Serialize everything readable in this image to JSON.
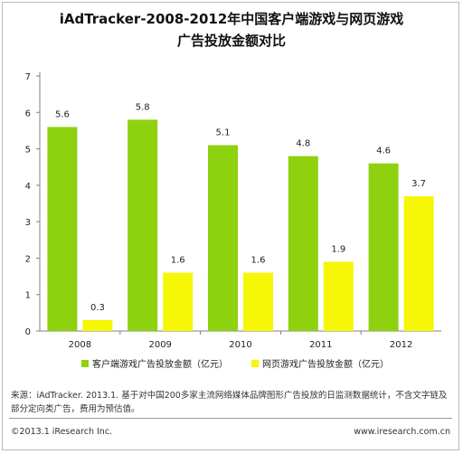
{
  "title_line1": "iAdTracker-2008-2012年中国客户端游戏与网页游戏",
  "title_line2": "广告投放金额对比",
  "source_note": "来源：iAdTracker. 2013.1. 基于对中国200多家主流网络媒体品牌图形广告投放的日监测数据统计，不含文字链及部分定向类广告，费用为预估值。",
  "copyright": "©2013.1 iResearch Inc.",
  "website": "www.iresearch.com.cn",
  "colors": {
    "client": "#8ed10f",
    "web": "#f6f607",
    "axis": "#808080"
  },
  "chart_data": {
    "type": "bar",
    "categories": [
      "2008",
      "2009",
      "2010",
      "2011",
      "2012"
    ],
    "series": [
      {
        "name": "客户端游戏广告投放金额（亿元）",
        "values": [
          5.6,
          5.8,
          5.1,
          4.8,
          4.6
        ]
      },
      {
        "name": "网页游戏广告投放金额（亿元）",
        "values": [
          0.3,
          1.6,
          1.6,
          1.9,
          3.7
        ]
      }
    ],
    "ylim": [
      0,
      7
    ],
    "yticks": [
      0,
      1,
      2,
      3,
      4,
      5,
      6,
      7
    ],
    "data_labels": true,
    "legend_position": "bottom",
    "grid": false
  }
}
